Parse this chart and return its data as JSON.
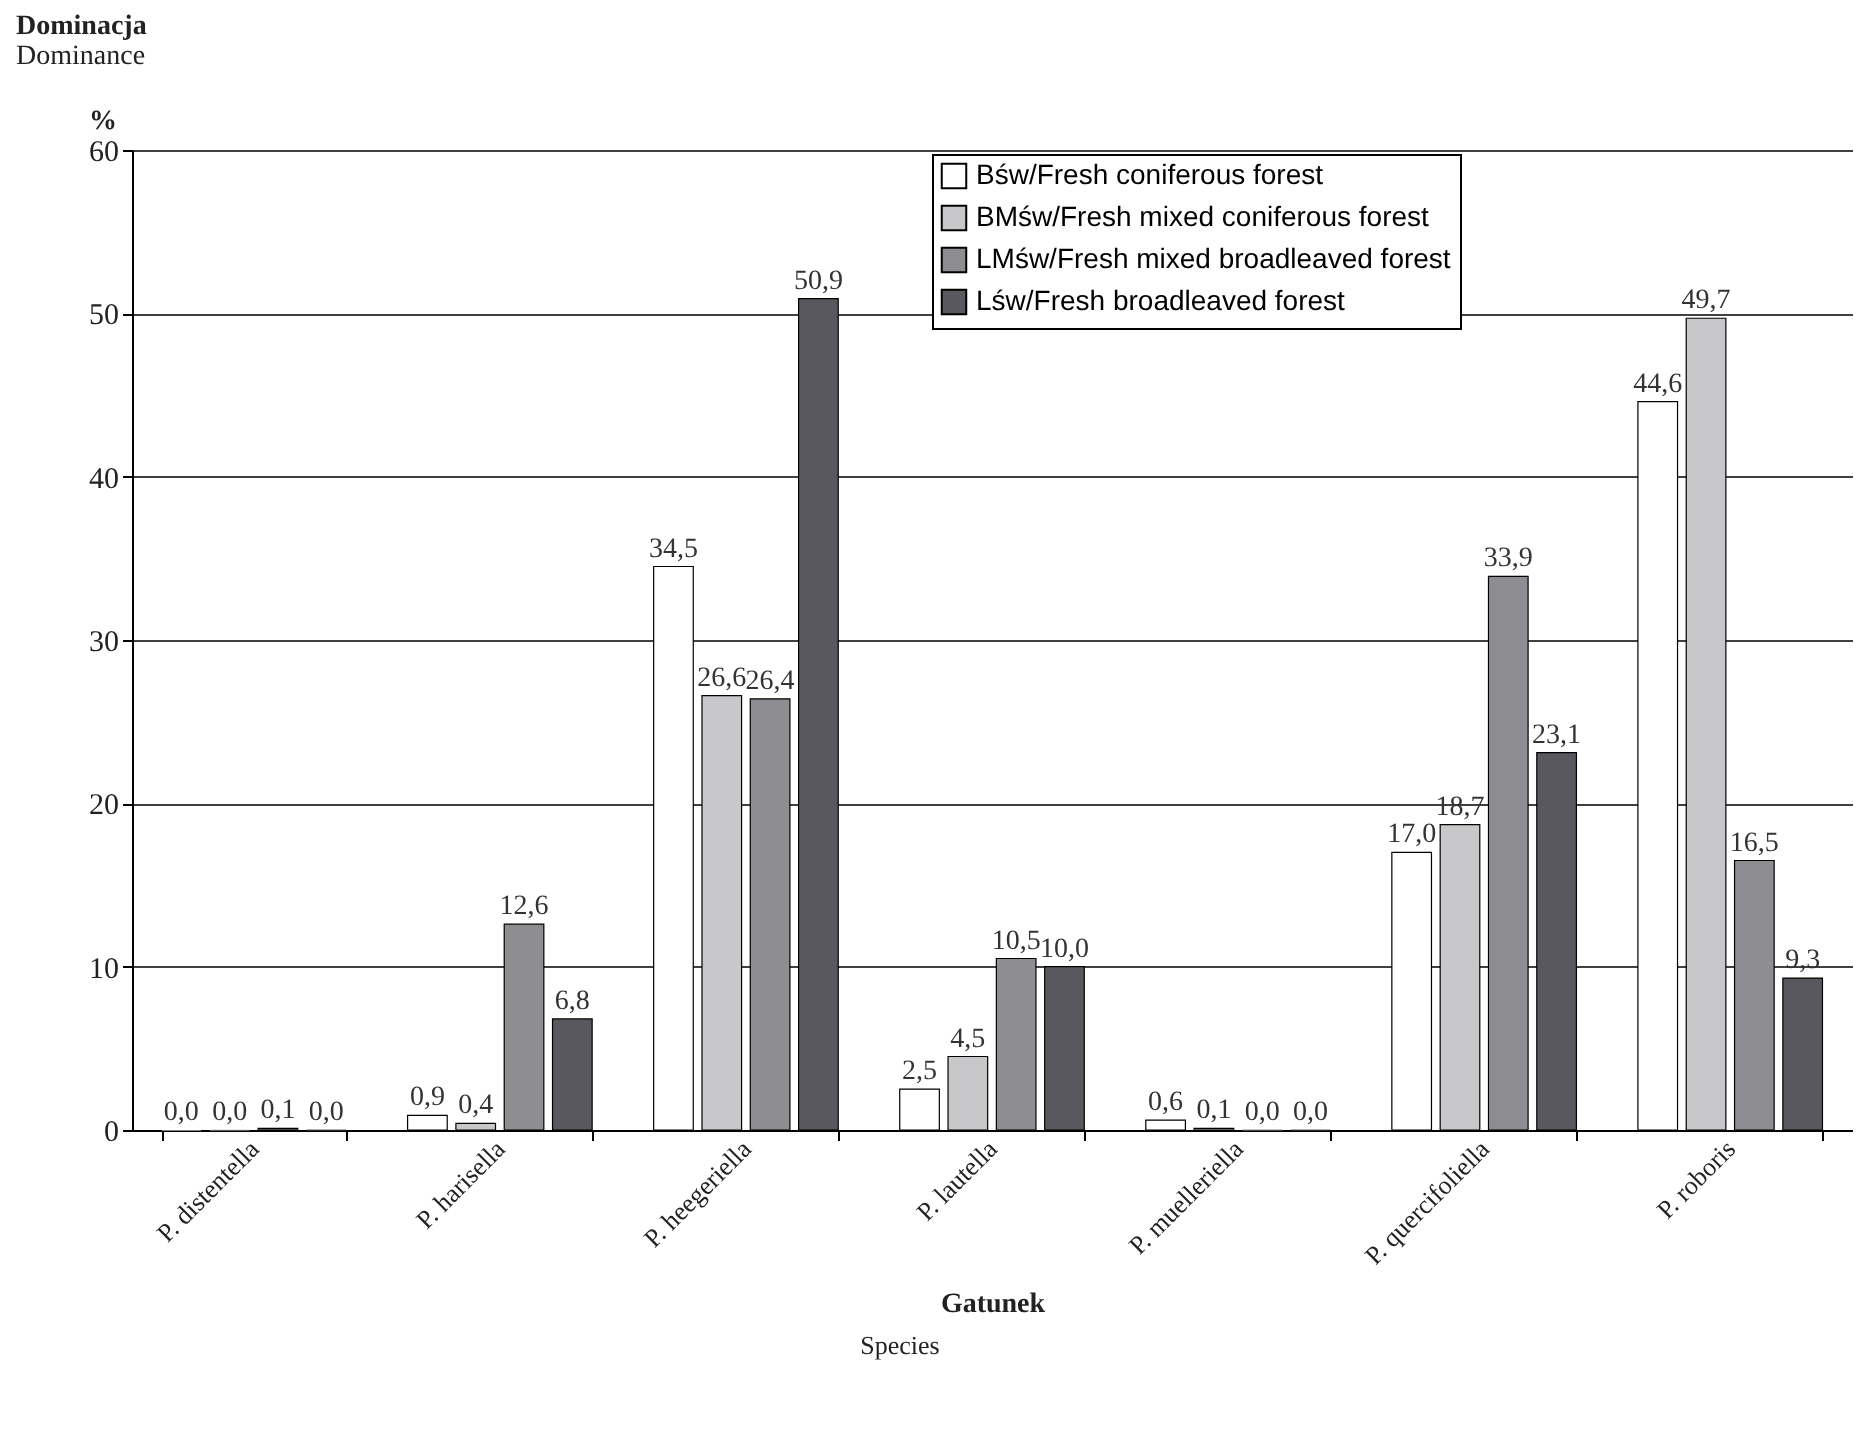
{
  "chart_data": {
    "type": "bar",
    "title": "Dominacja",
    "subtitle": "Dominance",
    "ylabel": "%",
    "xlabel": "Gatunek",
    "annotations": [
      "Species"
    ],
    "categories": [
      "P. distentella",
      "P. harisella",
      "P. heegeriella",
      "P. lautella",
      "P. muelleriella",
      "P. quercifoliella",
      "P. roboris"
    ],
    "series": [
      {
        "name": "Bśw/Fresh coniferous forest",
        "color": "#ffffff",
        "values": [
          0.0,
          0.9,
          34.5,
          2.5,
          0.6,
          17.0,
          44.6
        ],
        "value_labels": [
          "0,0",
          "0,9",
          "34,5",
          "2,5",
          "0,6",
          "17,0",
          "44,6"
        ]
      },
      {
        "name": "BMśw/Fresh mixed coniferous forest",
        "color": "#c8c8ca",
        "values": [
          0.0,
          0.4,
          26.6,
          4.5,
          0.1,
          18.7,
          49.7
        ],
        "value_labels": [
          "0,0",
          "0,4",
          "26,6",
          "4,5",
          "0,1",
          "18,7",
          "49,7"
        ]
      },
      {
        "name": "LMśw/Fresh mixed broadleaved forest",
        "color": "#8e8e92",
        "values": [
          0.1,
          12.6,
          26.4,
          10.5,
          0.0,
          33.9,
          16.5
        ],
        "value_labels": [
          "0,1",
          "12,6",
          "26,4",
          "10,5",
          "0,0",
          "33,9",
          "16,5"
        ]
      },
      {
        "name": "Lśw/Fresh broadleaved forest",
        "color": "#58585e",
        "values": [
          0.0,
          6.8,
          50.9,
          10.0,
          0.0,
          23.1,
          9.3
        ],
        "value_labels": [
          "0,0",
          "6,8",
          "50,9",
          "10,0",
          "0,0",
          "23,1",
          "9,3"
        ]
      }
    ],
    "ylim": [
      0,
      60
    ],
    "yticks": [
      0,
      10,
      20,
      30,
      40,
      50,
      60
    ],
    "grid": "y",
    "legend": "top right"
  }
}
